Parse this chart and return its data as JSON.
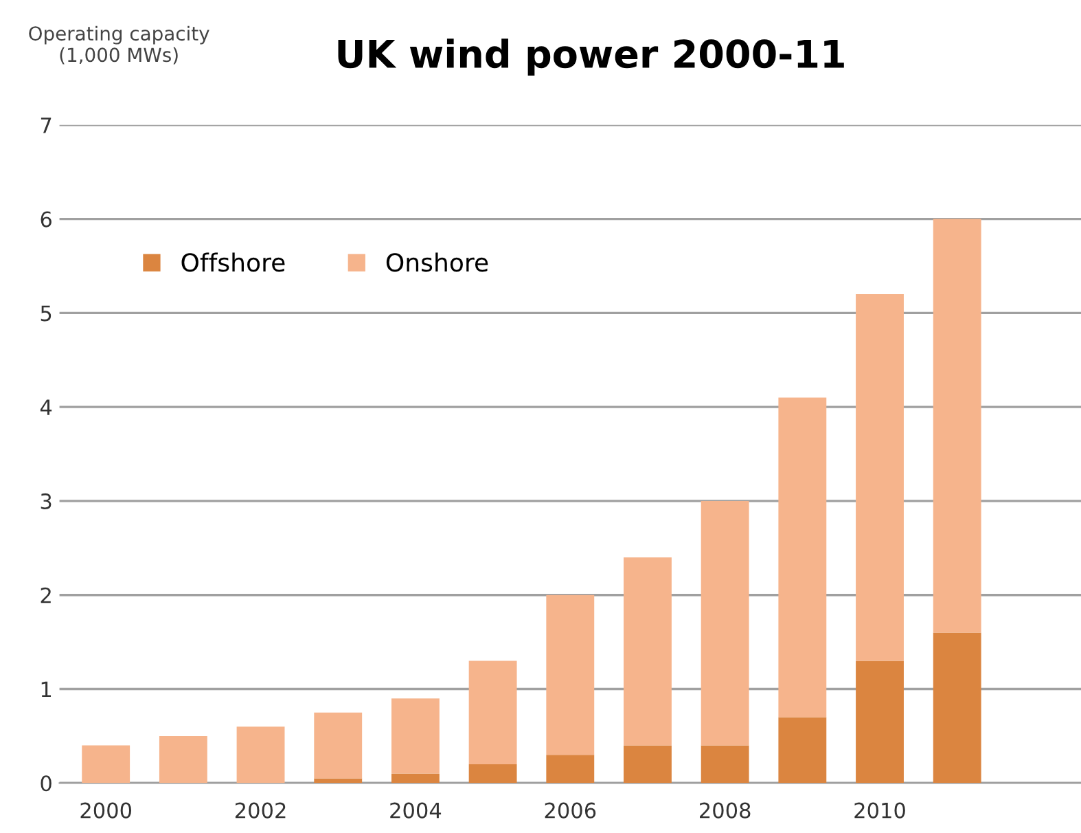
{
  "chart_data": {
    "type": "bar",
    "title": "UK wind power 2000-11",
    "ylabel": "Operating capacity\n(1,000 MWs)",
    "categories": [
      "2000",
      null,
      "2002",
      null,
      "2004",
      null,
      "2006",
      null,
      "2008",
      null,
      "2010",
      null
    ],
    "stacked": true,
    "series": [
      {
        "name": "Offshore",
        "color": "#db8540",
        "values": [
          0,
          0,
          0,
          0.05,
          0.1,
          0.2,
          0.3,
          0.4,
          0.4,
          0.7,
          1.3,
          1.6
        ]
      },
      {
        "name": "Onshore",
        "color": "#f6b48c",
        "values": [
          0.4,
          0.5,
          0.6,
          0.7,
          0.8,
          1.1,
          1.7,
          2.0,
          2.6,
          3.4,
          3.9,
          4.4
        ]
      }
    ],
    "ylim": [
      0,
      7
    ],
    "yticks": [
      0,
      1,
      2,
      3,
      4,
      5,
      6,
      7
    ],
    "grid": "y",
    "legend": "top left"
  }
}
